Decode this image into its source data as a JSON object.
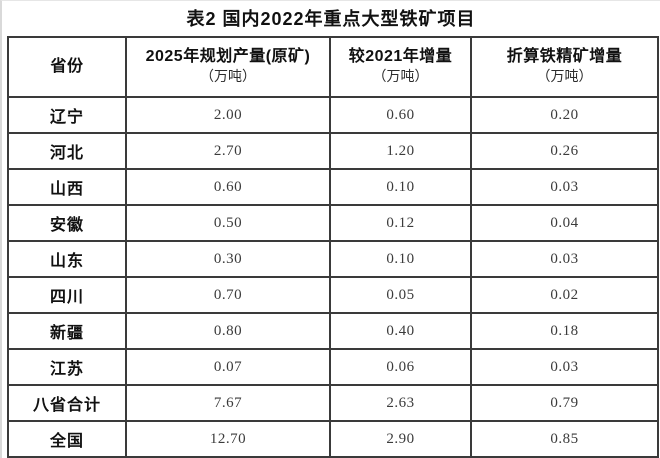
{
  "title": "表2 国内2022年重点大型铁矿项目",
  "table": {
    "columns": [
      {
        "label": "省份",
        "unit": ""
      },
      {
        "label": "2025年规划产量(原矿)",
        "unit": "（万吨）"
      },
      {
        "label": "较2021年增量",
        "unit": "（万吨）"
      },
      {
        "label": "折算铁精矿增量",
        "unit": "（万吨）"
      }
    ],
    "rows": [
      {
        "province": "辽宁",
        "planned_2025": "2.00",
        "increase_vs_2021": "0.60",
        "concentrate_increase": "0.20"
      },
      {
        "province": "河北",
        "planned_2025": "2.70",
        "increase_vs_2021": "1.20",
        "concentrate_increase": "0.26"
      },
      {
        "province": "山西",
        "planned_2025": "0.60",
        "increase_vs_2021": "0.10",
        "concentrate_increase": "0.03"
      },
      {
        "province": "安徽",
        "planned_2025": "0.50",
        "increase_vs_2021": "0.12",
        "concentrate_increase": "0.04"
      },
      {
        "province": "山东",
        "planned_2025": "0.30",
        "increase_vs_2021": "0.10",
        "concentrate_increase": "0.03"
      },
      {
        "province": "四川",
        "planned_2025": "0.70",
        "increase_vs_2021": "0.05",
        "concentrate_increase": "0.02"
      },
      {
        "province": "新疆",
        "planned_2025": "0.80",
        "increase_vs_2021": "0.40",
        "concentrate_increase": "0.18"
      },
      {
        "province": "江苏",
        "planned_2025": "0.07",
        "increase_vs_2021": "0.06",
        "concentrate_increase": "0.03"
      },
      {
        "province": "八省合计",
        "planned_2025": "7.67",
        "increase_vs_2021": "2.63",
        "concentrate_increase": "0.79"
      },
      {
        "province": "全国",
        "planned_2025": "12.70",
        "increase_vs_2021": "2.90",
        "concentrate_increase": "0.85"
      }
    ]
  }
}
